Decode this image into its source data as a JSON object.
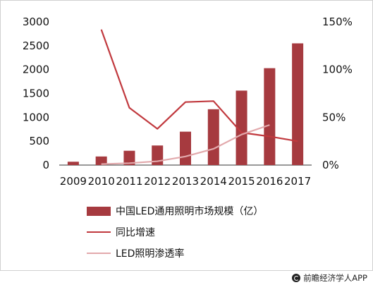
{
  "chart_data": {
    "type": "bar",
    "categories": [
      "2009",
      "2010",
      "2011",
      "2012",
      "2013",
      "2014",
      "2015",
      "2016",
      "2017"
    ],
    "series": [
      {
        "name": "中国LED通用照明市场规模（亿）",
        "type": "bar",
        "axis": "left",
        "color": "#a63a3f",
        "values": [
          70,
          180,
          300,
          410,
          700,
          1170,
          1560,
          2030,
          2550
        ]
      },
      {
        "name": "同比增速",
        "type": "line",
        "axis": "right",
        "color": "#c1393e",
        "values": [
          null,
          142,
          60,
          38,
          66,
          67,
          34,
          30,
          25
        ]
      },
      {
        "name": "LED照明渗透率",
        "type": "line",
        "axis": "right",
        "color": "#e2a9ac",
        "values": [
          null,
          1,
          2,
          4,
          9,
          17,
          32,
          42,
          null
        ]
      }
    ],
    "y_left": {
      "lim": [
        0,
        3000
      ],
      "ticks": [
        "0",
        "500",
        "1000",
        "1500",
        "2000",
        "2500",
        "3000"
      ]
    },
    "y_right": {
      "lim": [
        0,
        150
      ],
      "ticks": [
        "0%",
        "50%",
        "100%",
        "150%"
      ]
    },
    "legend_position": "bottom",
    "grid": false
  },
  "footer": {
    "credit": "前瞻经济学人APP"
  }
}
